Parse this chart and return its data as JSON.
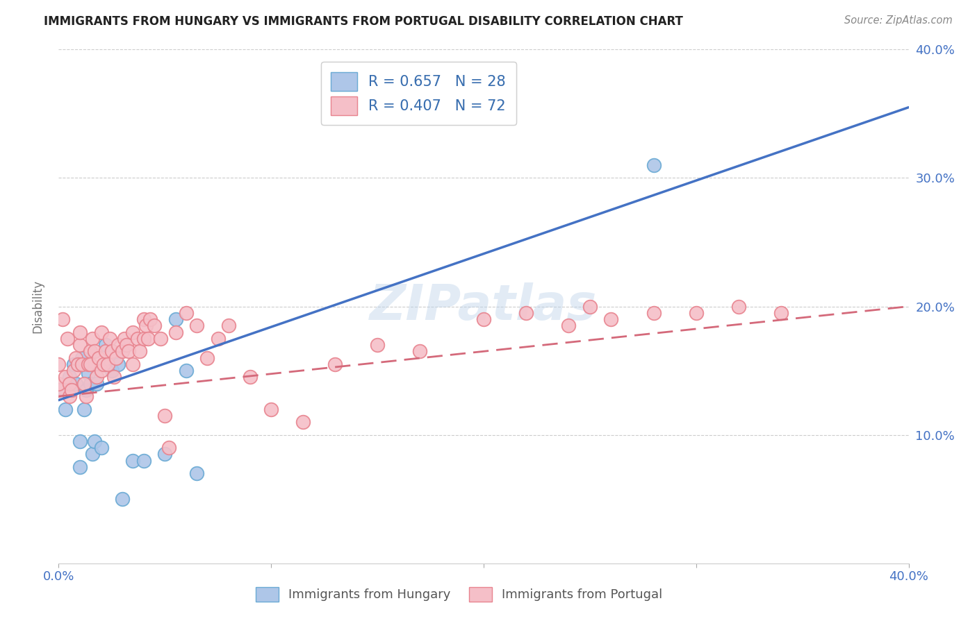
{
  "title": "IMMIGRANTS FROM HUNGARY VS IMMIGRANTS FROM PORTUGAL DISABILITY CORRELATION CHART",
  "source": "Source: ZipAtlas.com",
  "ylabel": "Disability",
  "xlim": [
    0.0,
    0.4
  ],
  "ylim": [
    0.0,
    0.4
  ],
  "x_ticks": [
    0.0,
    0.1,
    0.2,
    0.3,
    0.4
  ],
  "y_ticks": [
    0.1,
    0.2,
    0.3,
    0.4
  ],
  "x_tick_labels": [
    "0.0%",
    "",
    "",
    "",
    "40.0%"
  ],
  "y_tick_labels_right": [
    "10.0%",
    "20.0%",
    "30.0%",
    "40.0%"
  ],
  "hungary_R": 0.657,
  "hungary_N": 28,
  "portugal_R": 0.407,
  "portugal_N": 72,
  "hungary_color": "#aec6e8",
  "hungary_edge_color": "#6aaad4",
  "portugal_color": "#f5bfc8",
  "portugal_edge_color": "#e8848f",
  "hungary_line_color": "#4472c4",
  "portugal_line_color": "#d4697a",
  "background_color": "#ffffff",
  "grid_color": "#cccccc",
  "watermark": "ZIPatlas",
  "hungary_x": [
    0.0,
    0.003,
    0.005,
    0.007,
    0.008,
    0.009,
    0.01,
    0.01,
    0.011,
    0.012,
    0.013,
    0.014,
    0.015,
    0.016,
    0.017,
    0.018,
    0.02,
    0.022,
    0.025,
    0.028,
    0.03,
    0.035,
    0.04,
    0.05,
    0.055,
    0.06,
    0.065,
    0.28
  ],
  "hungary_y": [
    0.135,
    0.12,
    0.145,
    0.155,
    0.14,
    0.155,
    0.095,
    0.075,
    0.16,
    0.12,
    0.135,
    0.148,
    0.14,
    0.085,
    0.095,
    0.14,
    0.09,
    0.17,
    0.15,
    0.155,
    0.05,
    0.08,
    0.08,
    0.085,
    0.19,
    0.15,
    0.07,
    0.31
  ],
  "portugal_x": [
    0.0,
    0.0,
    0.0,
    0.002,
    0.003,
    0.004,
    0.005,
    0.005,
    0.006,
    0.007,
    0.008,
    0.009,
    0.01,
    0.01,
    0.011,
    0.012,
    0.013,
    0.014,
    0.015,
    0.015,
    0.016,
    0.017,
    0.018,
    0.019,
    0.02,
    0.02,
    0.021,
    0.022,
    0.023,
    0.024,
    0.025,
    0.026,
    0.027,
    0.028,
    0.03,
    0.031,
    0.032,
    0.033,
    0.035,
    0.035,
    0.037,
    0.038,
    0.04,
    0.04,
    0.041,
    0.042,
    0.043,
    0.045,
    0.048,
    0.05,
    0.052,
    0.055,
    0.06,
    0.065,
    0.07,
    0.075,
    0.08,
    0.09,
    0.1,
    0.115,
    0.13,
    0.15,
    0.17,
    0.2,
    0.22,
    0.24,
    0.25,
    0.26,
    0.28,
    0.3,
    0.32,
    0.34
  ],
  "portugal_y": [
    0.135,
    0.14,
    0.155,
    0.19,
    0.145,
    0.175,
    0.13,
    0.14,
    0.135,
    0.15,
    0.16,
    0.155,
    0.17,
    0.18,
    0.155,
    0.14,
    0.13,
    0.155,
    0.165,
    0.155,
    0.175,
    0.165,
    0.145,
    0.16,
    0.18,
    0.15,
    0.155,
    0.165,
    0.155,
    0.175,
    0.165,
    0.145,
    0.16,
    0.17,
    0.165,
    0.175,
    0.17,
    0.165,
    0.18,
    0.155,
    0.175,
    0.165,
    0.175,
    0.19,
    0.185,
    0.175,
    0.19,
    0.185,
    0.175,
    0.115,
    0.09,
    0.18,
    0.195,
    0.185,
    0.16,
    0.175,
    0.185,
    0.145,
    0.12,
    0.11,
    0.155,
    0.17,
    0.165,
    0.19,
    0.195,
    0.185,
    0.2,
    0.19,
    0.195,
    0.195,
    0.2,
    0.195
  ],
  "hungary_line_x": [
    0.0,
    0.4
  ],
  "hungary_line_y": [
    0.127,
    0.355
  ],
  "portugal_line_x": [
    0.0,
    0.4
  ],
  "portugal_line_y": [
    0.13,
    0.2
  ]
}
